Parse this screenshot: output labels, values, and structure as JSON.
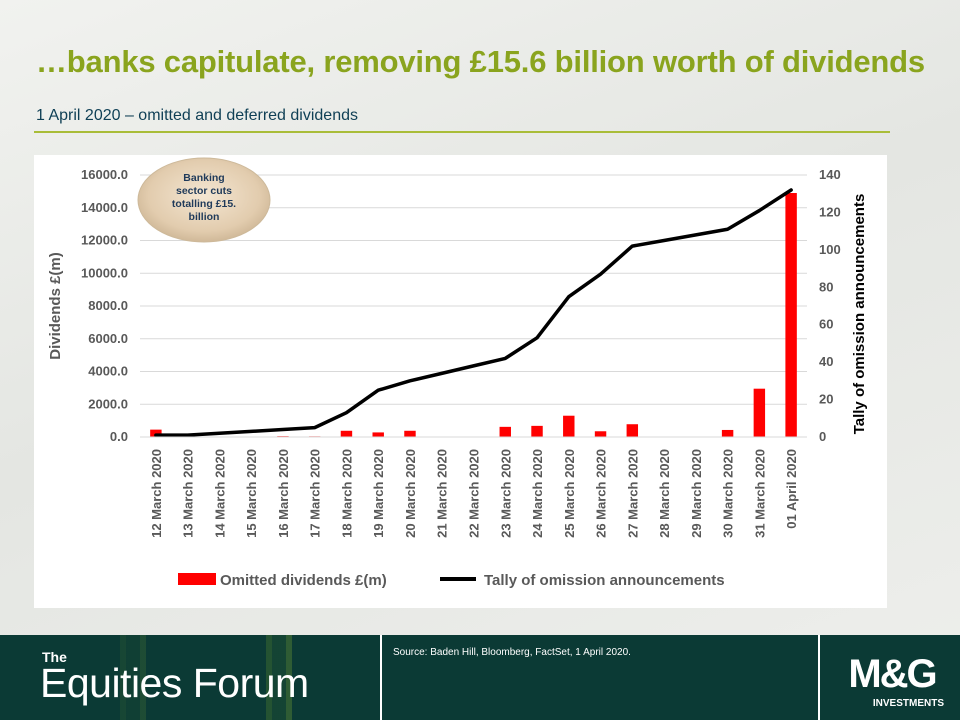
{
  "slide": {
    "title": "…banks capitulate, removing £15.6 billion worth of dividends",
    "subtitle": "1 April 2020 – omitted and deferred dividends"
  },
  "chart_data": {
    "type": "bar",
    "categories": [
      "12 March 2020",
      "13 March 2020",
      "14 March 2020",
      "15 March 2020",
      "16 March 2020",
      "17 March 2020",
      "18 March 2020",
      "19 March 2020",
      "20 March 2020",
      "21 March 2020",
      "22 March 2020",
      "23 March 2020",
      "24 March 2020",
      "25 March 2020",
      "26 March 2020",
      "27 March 2020",
      "28 March 2020",
      "29 March 2020",
      "30 March 2020",
      "31 March 2020",
      "01 April 2020"
    ],
    "series": [
      {
        "name": "Omitted dividends £(m)",
        "type": "bar",
        "axis": "left",
        "color": "#ff0000",
        "values": [
          450,
          0,
          0,
          0,
          50,
          40,
          380,
          280,
          380,
          0,
          0,
          620,
          680,
          1300,
          350,
          780,
          0,
          0,
          430,
          2950,
          14900
        ]
      },
      {
        "name": "Tally of omission announcements",
        "type": "line",
        "axis": "right",
        "color": "#000000",
        "values": [
          1,
          1,
          2,
          3,
          4,
          5,
          13,
          25,
          30,
          34,
          38,
          42,
          53,
          75,
          87,
          102,
          105,
          108,
          111,
          121,
          132
        ]
      }
    ],
    "y_left": {
      "label": "Dividends £(m)",
      "range": [
        0,
        16000
      ],
      "ticks": [
        "0.0",
        "2000.0",
        "4000.0",
        "6000.0",
        "8000.0",
        "10000.0",
        "12000.0",
        "14000.0",
        "16000.0"
      ]
    },
    "y_right": {
      "label": "Tally of omission announcements",
      "range": [
        0,
        140
      ],
      "ticks": [
        "0",
        "20",
        "40",
        "60",
        "80",
        "100",
        "120",
        "140"
      ]
    },
    "grid": true,
    "legend": "bottom",
    "annotation": "Banking sector cuts totalling £15.6 billion"
  },
  "footer": {
    "brand_the": "The",
    "brand_name": "Equities Forum",
    "source": "Source: Baden Hill, Bloomberg,  FactSet, 1 April 2020.",
    "logo_main": "M&G",
    "logo_sub": "INVESTMENTS"
  },
  "colors": {
    "title": "#8aa41e",
    "subtitle": "#0f3f55",
    "footer_bg": "#0b3a35",
    "bar": "#ff0000"
  }
}
